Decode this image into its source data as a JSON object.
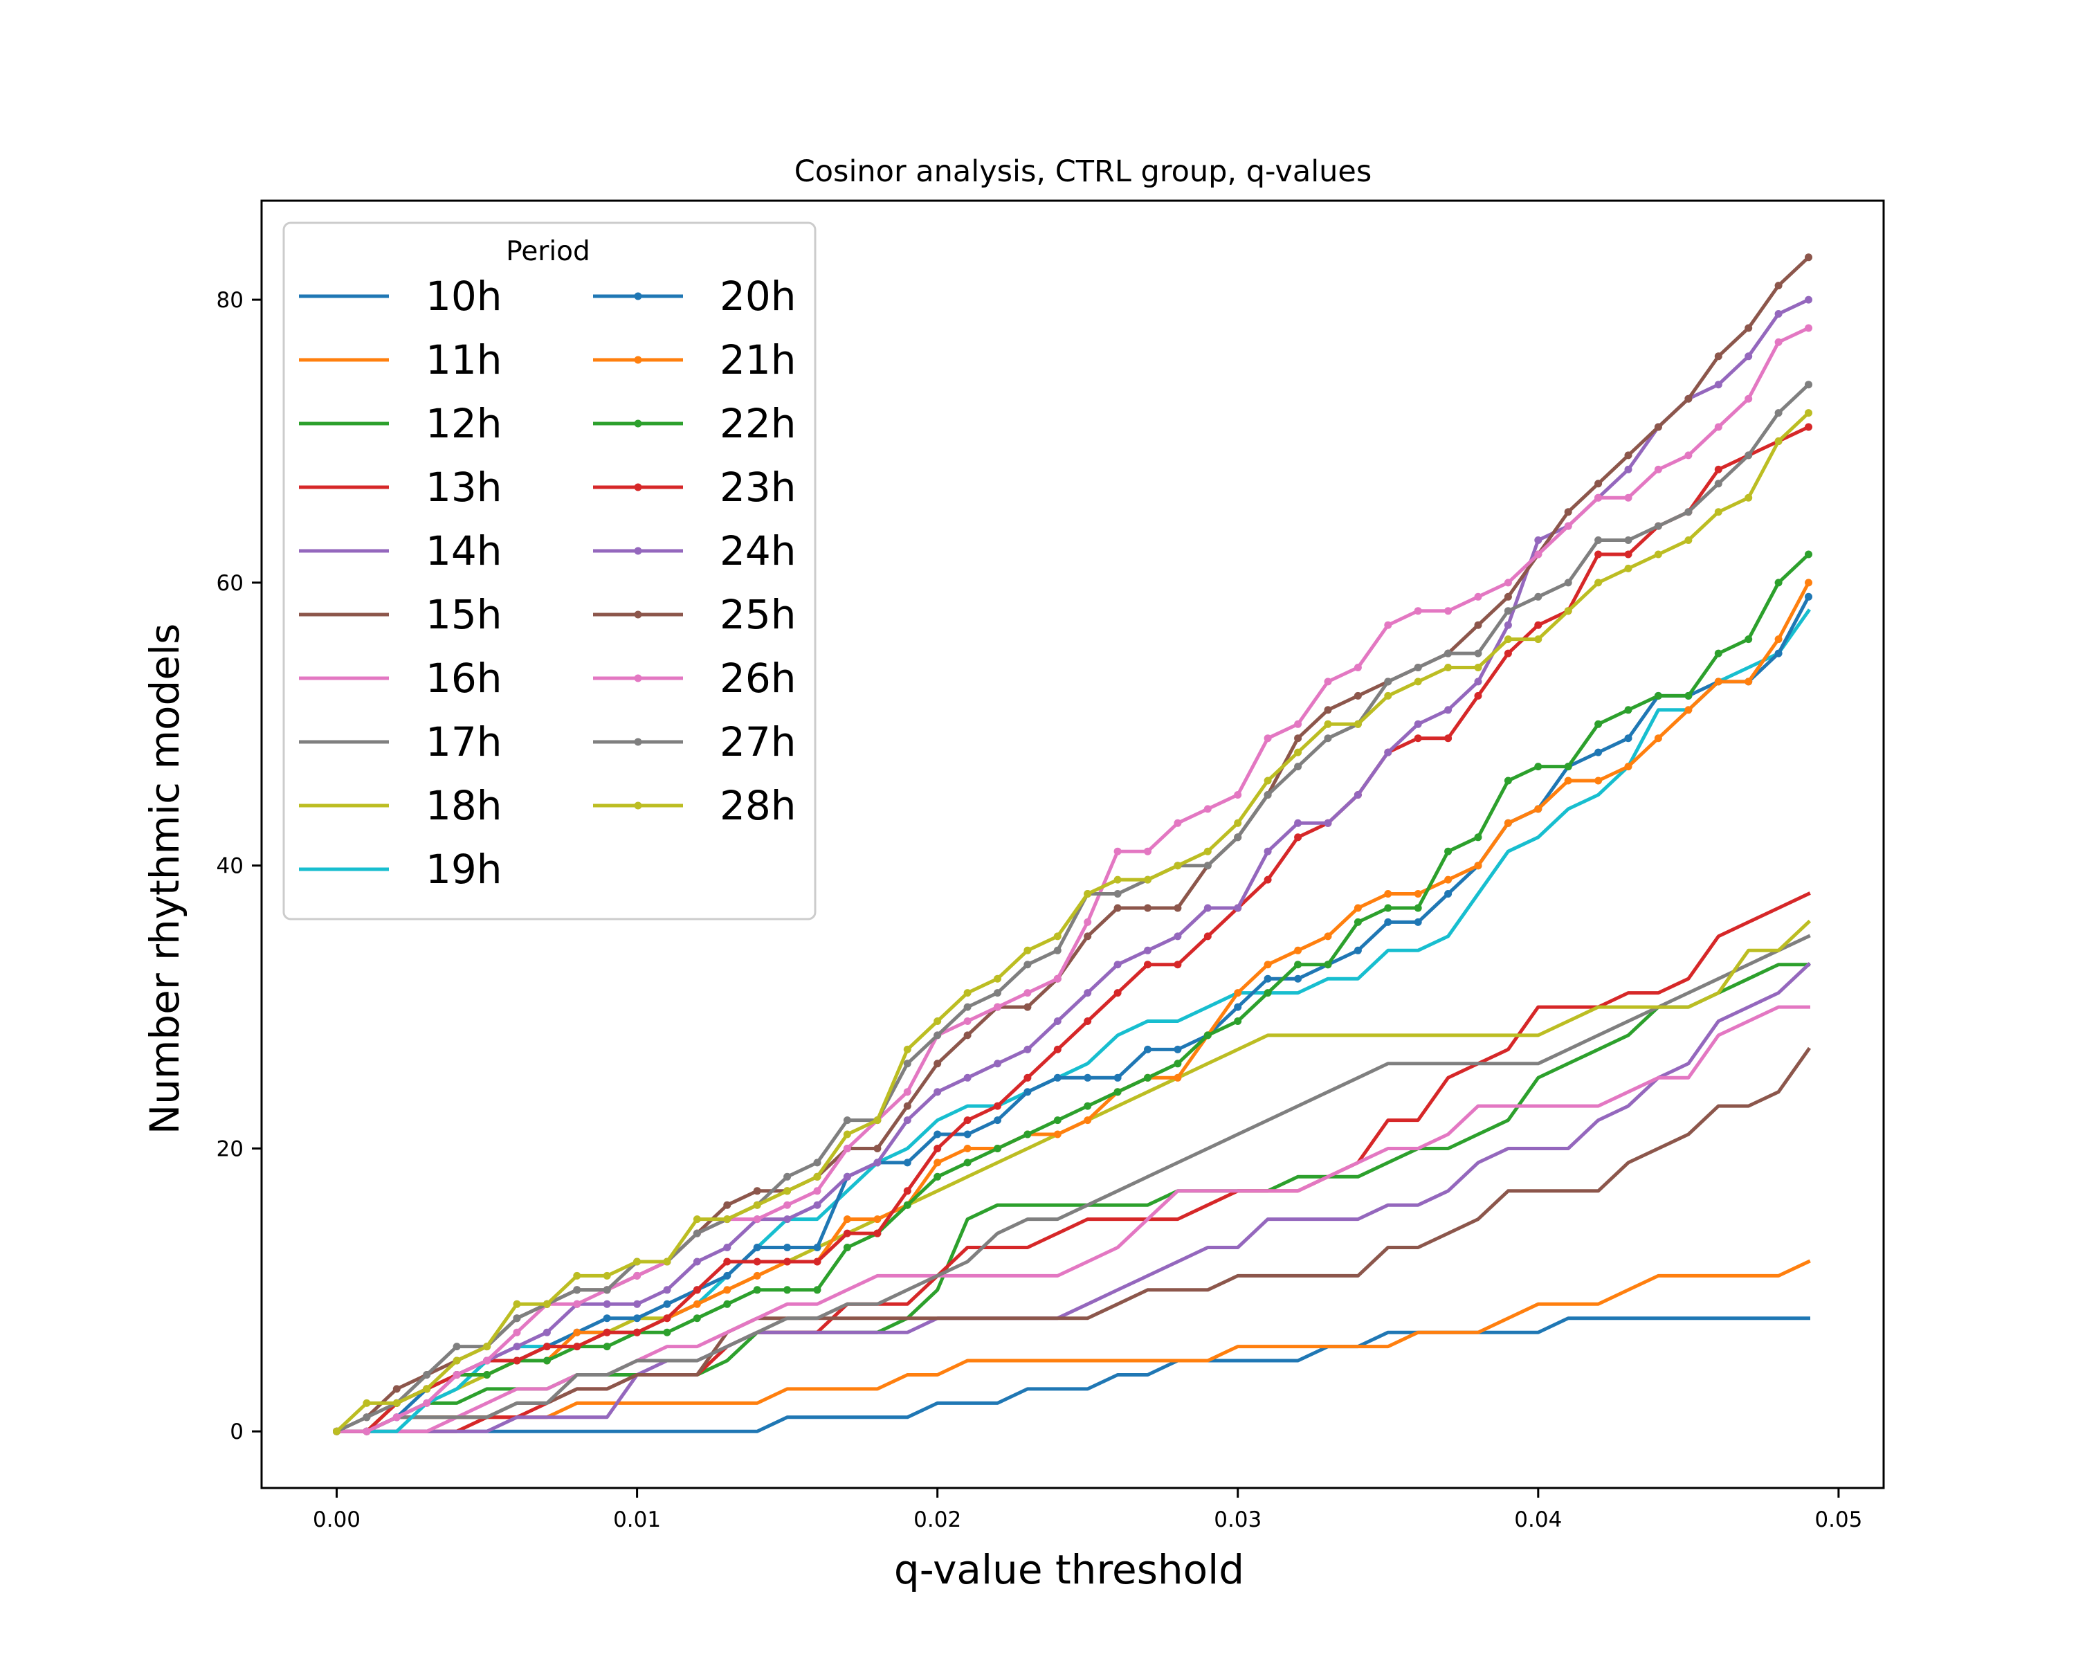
{
  "chart_data": {
    "type": "line",
    "title": "Cosinor analysis, CTRL group, q-values",
    "xlabel": "q-value threshold",
    "ylabel": "Number rhythmic models",
    "xlim": [
      -0.0025,
      0.0515
    ],
    "ylim": [
      -4,
      87
    ],
    "xticks": [
      0.0,
      0.01,
      0.02,
      0.03,
      0.04,
      0.05
    ],
    "xtick_labels": [
      "0.00",
      "0.01",
      "0.02",
      "0.03",
      "0.04",
      "0.05"
    ],
    "yticks": [
      0,
      20,
      40,
      60,
      80
    ],
    "ytick_labels": [
      "0",
      "20",
      "40",
      "60",
      "80"
    ],
    "grid": false,
    "legend": {
      "title": "Period",
      "position": "top-left",
      "columns": 2
    },
    "x": [
      0.0,
      0.001,
      0.002,
      0.003,
      0.004,
      0.005,
      0.006,
      0.007,
      0.008,
      0.009,
      0.01,
      0.011,
      0.012,
      0.013,
      0.014,
      0.015,
      0.016,
      0.017,
      0.018,
      0.019,
      0.02,
      0.021,
      0.022,
      0.023,
      0.024,
      0.025,
      0.026,
      0.027,
      0.028,
      0.029,
      0.03,
      0.031,
      0.032,
      0.033,
      0.034,
      0.035,
      0.036,
      0.037,
      0.038,
      0.039,
      0.04,
      0.041,
      0.042,
      0.043,
      0.044,
      0.045,
      0.046,
      0.047,
      0.048,
      0.049
    ],
    "series": [
      {
        "name": "10h",
        "color": "#1f77b4",
        "markers": false,
        "values": [
          0,
          0,
          0,
          0,
          0,
          0,
          0,
          0,
          0,
          0,
          0,
          0,
          0,
          0,
          0,
          1,
          1,
          1,
          1,
          1,
          2,
          2,
          2,
          3,
          3,
          3,
          4,
          4,
          5,
          5,
          5,
          5,
          5,
          6,
          6,
          7,
          7,
          7,
          7,
          7,
          7,
          8,
          8,
          8,
          8,
          8,
          8,
          8,
          8,
          8
        ]
      },
      {
        "name": "11h",
        "color": "#ff7f0e",
        "markers": false,
        "values": [
          0,
          0,
          1,
          1,
          1,
          1,
          1,
          1,
          2,
          2,
          2,
          2,
          2,
          2,
          2,
          3,
          3,
          3,
          3,
          4,
          4,
          5,
          5,
          5,
          5,
          5,
          5,
          5,
          5,
          5,
          6,
          6,
          6,
          6,
          6,
          6,
          7,
          7,
          7,
          8,
          9,
          9,
          9,
          10,
          11,
          11,
          11,
          11,
          11,
          12
        ]
      },
      {
        "name": "12h",
        "color": "#2ca02c",
        "markers": false,
        "values": [
          0,
          0,
          1,
          2,
          2,
          3,
          3,
          3,
          4,
          4,
          4,
          4,
          4,
          5,
          7,
          7,
          7,
          7,
          7,
          8,
          10,
          15,
          16,
          16,
          16,
          16,
          16,
          16,
          17,
          17,
          17,
          17,
          18,
          18,
          18,
          19,
          20,
          20,
          21,
          22,
          25,
          26,
          27,
          28,
          30,
          30,
          31,
          32,
          33,
          33
        ]
      },
      {
        "name": "13h",
        "color": "#d62728",
        "markers": false,
        "values": [
          0,
          0,
          0,
          0,
          0,
          1,
          1,
          2,
          3,
          3,
          4,
          4,
          4,
          6,
          7,
          7,
          7,
          9,
          9,
          9,
          11,
          13,
          13,
          13,
          14,
          15,
          15,
          15,
          15,
          16,
          17,
          17,
          17,
          18,
          19,
          22,
          22,
          25,
          26,
          27,
          30,
          30,
          30,
          31,
          31,
          32,
          35,
          36,
          37,
          38
        ]
      },
      {
        "name": "14h",
        "color": "#9467bd",
        "markers": false,
        "values": [
          0,
          0,
          0,
          0,
          0,
          0,
          1,
          1,
          1,
          1,
          4,
          5,
          5,
          6,
          7,
          7,
          7,
          7,
          7,
          7,
          8,
          8,
          8,
          8,
          8,
          9,
          10,
          11,
          12,
          13,
          13,
          15,
          15,
          15,
          15,
          16,
          16,
          17,
          19,
          20,
          20,
          20,
          22,
          23,
          25,
          26,
          29,
          30,
          31,
          33
        ]
      },
      {
        "name": "15h",
        "color": "#8c564b",
        "markers": false,
        "values": [
          0,
          0,
          1,
          1,
          1,
          1,
          2,
          2,
          3,
          3,
          4,
          4,
          4,
          7,
          8,
          8,
          8,
          8,
          8,
          8,
          8,
          8,
          8,
          8,
          8,
          8,
          9,
          10,
          10,
          10,
          11,
          11,
          11,
          11,
          11,
          13,
          13,
          14,
          15,
          17,
          17,
          17,
          17,
          19,
          20,
          21,
          23,
          23,
          24,
          27
        ]
      },
      {
        "name": "16h",
        "color": "#e377c2",
        "markers": false,
        "values": [
          0,
          0,
          0,
          0,
          1,
          2,
          3,
          3,
          4,
          4,
          5,
          6,
          6,
          7,
          8,
          9,
          9,
          10,
          11,
          11,
          11,
          11,
          11,
          11,
          11,
          12,
          13,
          15,
          17,
          17,
          17,
          17,
          17,
          18,
          19,
          20,
          20,
          21,
          23,
          23,
          23,
          23,
          23,
          24,
          25,
          25,
          28,
          29,
          30,
          30
        ]
      },
      {
        "name": "17h",
        "color": "#7f7f7f",
        "markers": false,
        "values": [
          0,
          0,
          1,
          1,
          1,
          1,
          2,
          2,
          4,
          4,
          5,
          5,
          5,
          6,
          7,
          8,
          8,
          9,
          9,
          10,
          11,
          12,
          14,
          15,
          15,
          16,
          17,
          18,
          19,
          20,
          21,
          22,
          23,
          24,
          25,
          26,
          26,
          26,
          26,
          26,
          26,
          27,
          28,
          29,
          30,
          31,
          32,
          33,
          34,
          35
        ]
      },
      {
        "name": "18h",
        "color": "#bcbd22",
        "markers": false,
        "values": [
          0,
          0,
          1,
          2,
          3,
          4,
          5,
          6,
          6,
          7,
          8,
          8,
          9,
          10,
          11,
          12,
          13,
          14,
          15,
          16,
          17,
          18,
          19,
          20,
          21,
          22,
          23,
          24,
          25,
          26,
          27,
          28,
          28,
          28,
          28,
          28,
          28,
          28,
          28,
          28,
          28,
          29,
          30,
          30,
          30,
          30,
          31,
          34,
          34,
          36
        ]
      },
      {
        "name": "19h",
        "color": "#17becf",
        "markers": false,
        "values": [
          0,
          0,
          0,
          2,
          3,
          5,
          6,
          6,
          7,
          7,
          7,
          8,
          9,
          11,
          13,
          15,
          15,
          17,
          19,
          20,
          22,
          23,
          23,
          24,
          25,
          26,
          28,
          29,
          29,
          30,
          31,
          31,
          31,
          32,
          32,
          34,
          34,
          35,
          38,
          41,
          42,
          44,
          45,
          47,
          51,
          51,
          53,
          54,
          55,
          58
        ]
      },
      {
        "name": "20h",
        "color": "#1f77b4",
        "markers": true,
        "values": [
          0,
          0,
          1,
          3,
          4,
          5,
          5,
          6,
          7,
          8,
          8,
          9,
          10,
          11,
          13,
          13,
          13,
          18,
          19,
          19,
          21,
          21,
          22,
          24,
          25,
          25,
          25,
          27,
          27,
          28,
          30,
          32,
          32,
          33,
          34,
          36,
          36,
          38,
          40,
          43,
          44,
          47,
          48,
          49,
          52,
          52,
          53,
          53,
          55,
          59
        ]
      },
      {
        "name": "21h",
        "color": "#ff7f0e",
        "markers": true,
        "values": [
          0,
          0,
          2,
          3,
          4,
          4,
          5,
          5,
          7,
          7,
          7,
          8,
          9,
          10,
          11,
          12,
          12,
          15,
          15,
          16,
          19,
          20,
          20,
          21,
          21,
          22,
          24,
          25,
          25,
          28,
          31,
          33,
          34,
          35,
          37,
          38,
          38,
          39,
          40,
          43,
          44,
          46,
          46,
          47,
          49,
          51,
          53,
          53,
          56,
          60
        ]
      },
      {
        "name": "22h",
        "color": "#2ca02c",
        "markers": true,
        "values": [
          0,
          0,
          2,
          3,
          4,
          4,
          5,
          5,
          6,
          6,
          7,
          7,
          8,
          9,
          10,
          10,
          10,
          13,
          14,
          16,
          18,
          19,
          20,
          21,
          22,
          23,
          24,
          25,
          26,
          28,
          29,
          31,
          33,
          33,
          36,
          37,
          37,
          41,
          42,
          46,
          47,
          47,
          50,
          51,
          52,
          52,
          55,
          56,
          60,
          62
        ]
      },
      {
        "name": "23h",
        "color": "#d62728",
        "markers": true,
        "values": [
          0,
          0,
          2,
          3,
          4,
          5,
          5,
          6,
          6,
          7,
          7,
          8,
          10,
          12,
          12,
          12,
          12,
          14,
          14,
          17,
          20,
          22,
          23,
          25,
          27,
          29,
          31,
          33,
          33,
          35,
          37,
          39,
          42,
          43,
          45,
          48,
          49,
          49,
          52,
          55,
          57,
          58,
          62,
          62,
          64,
          65,
          68,
          69,
          70,
          71
        ]
      },
      {
        "name": "24h",
        "color": "#9467bd",
        "markers": true,
        "values": [
          0,
          0,
          1,
          2,
          4,
          5,
          6,
          7,
          9,
          9,
          9,
          10,
          12,
          13,
          15,
          15,
          16,
          18,
          19,
          22,
          24,
          25,
          26,
          27,
          29,
          31,
          33,
          34,
          35,
          37,
          37,
          41,
          43,
          43,
          45,
          48,
          50,
          51,
          53,
          57,
          63,
          64,
          66,
          68,
          71,
          73,
          74,
          76,
          79,
          80
        ]
      },
      {
        "name": "25h",
        "color": "#8c564b",
        "markers": true,
        "values": [
          0,
          1,
          3,
          4,
          5,
          6,
          8,
          9,
          10,
          10,
          11,
          12,
          14,
          16,
          17,
          17,
          18,
          20,
          20,
          23,
          26,
          28,
          30,
          30,
          32,
          35,
          37,
          37,
          37,
          40,
          42,
          45,
          49,
          51,
          52,
          53,
          54,
          55,
          57,
          59,
          62,
          65,
          67,
          69,
          71,
          73,
          76,
          78,
          81,
          83
        ]
      },
      {
        "name": "26h",
        "color": "#e377c2",
        "markers": true,
        "values": [
          0,
          0,
          1,
          2,
          4,
          5,
          7,
          9,
          9,
          10,
          11,
          12,
          14,
          15,
          15,
          16,
          17,
          20,
          22,
          24,
          28,
          29,
          30,
          31,
          32,
          36,
          41,
          41,
          43,
          44,
          45,
          49,
          50,
          53,
          54,
          57,
          58,
          58,
          59,
          60,
          62,
          64,
          66,
          66,
          68,
          69,
          71,
          73,
          77,
          78
        ]
      },
      {
        "name": "27h",
        "color": "#7f7f7f",
        "markers": true,
        "values": [
          0,
          1,
          2,
          4,
          6,
          6,
          8,
          9,
          10,
          10,
          12,
          12,
          14,
          15,
          16,
          18,
          19,
          22,
          22,
          26,
          28,
          30,
          31,
          33,
          34,
          38,
          38,
          39,
          40,
          40,
          42,
          45,
          47,
          49,
          50,
          53,
          54,
          55,
          55,
          58,
          59,
          60,
          63,
          63,
          64,
          65,
          67,
          69,
          72,
          74
        ]
      },
      {
        "name": "28h",
        "color": "#bcbd22",
        "markers": true,
        "values": [
          0,
          2,
          2,
          3,
          5,
          6,
          9,
          9,
          11,
          11,
          12,
          12,
          15,
          15,
          16,
          17,
          18,
          21,
          22,
          27,
          29,
          31,
          32,
          34,
          35,
          38,
          39,
          39,
          40,
          41,
          43,
          46,
          48,
          50,
          50,
          52,
          53,
          54,
          54,
          56,
          56,
          58,
          60,
          61,
          62,
          63,
          65,
          66,
          70,
          72
        ]
      }
    ]
  }
}
